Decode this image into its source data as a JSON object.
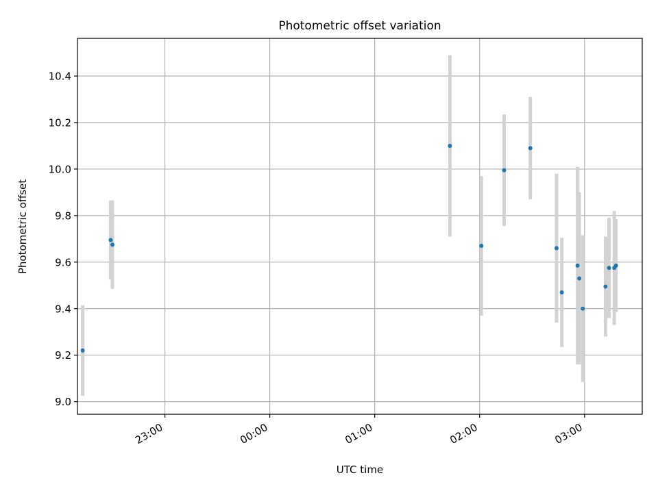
{
  "chart_data": {
    "type": "scatter",
    "title": "Photometric offset variation",
    "xlabel": "UTC time",
    "ylabel": "Photometric offset",
    "x_tick_labels": [
      "23:00",
      "00:00",
      "01:00",
      "02:00",
      "03:00"
    ],
    "y_tick_labels": [
      "9.0",
      "9.2",
      "9.4",
      "9.6",
      "9.8",
      "10.0",
      "10.2",
      "10.4"
    ],
    "grid": true,
    "points": [
      {
        "time": "22:13",
        "value": 9.22,
        "error": 0.195
      },
      {
        "time": "22:29",
        "value": 9.695,
        "error": 0.17
      },
      {
        "time": "22:30",
        "value": 9.675,
        "error": 0.19
      },
      {
        "time": "01:43",
        "value": 10.1,
        "error": 0.39
      },
      {
        "time": "02:01",
        "value": 9.67,
        "error": 0.3
      },
      {
        "time": "02:14",
        "value": 9.995,
        "error": 0.24
      },
      {
        "time": "02:29",
        "value": 10.09,
        "error": 0.22
      },
      {
        "time": "02:44",
        "value": 9.66,
        "error": 0.32
      },
      {
        "time": "02:47",
        "value": 9.47,
        "error": 0.235
      },
      {
        "time": "02:56",
        "value": 9.585,
        "error": 0.425
      },
      {
        "time": "02:57",
        "value": 9.53,
        "error": 0.37
      },
      {
        "time": "02:59",
        "value": 9.4,
        "error": 0.315
      },
      {
        "time": "03:12",
        "value": 9.495,
        "error": 0.215
      },
      {
        "time": "03:14",
        "value": 9.575,
        "error": 0.215
      },
      {
        "time": "03:17",
        "value": 9.575,
        "error": 0.245
      },
      {
        "time": "03:18",
        "value": 9.585,
        "error": 0.2
      }
    ],
    "colors": {
      "point": "#1f77b4",
      "errorbar": "#d3d3d3",
      "grid": "#b0b0b0"
    }
  }
}
